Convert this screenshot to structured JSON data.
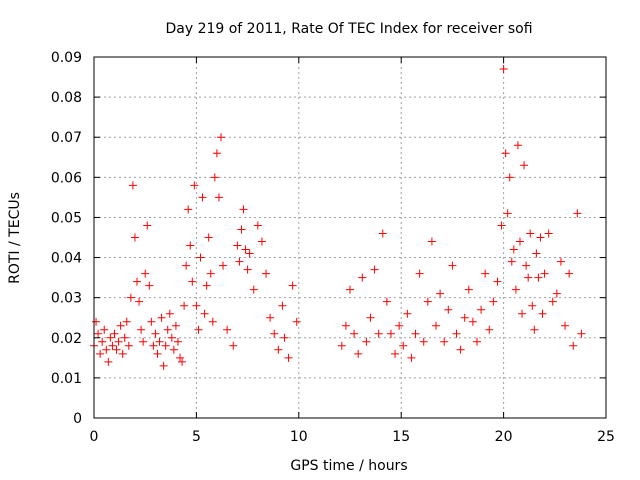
{
  "chart_data": {
    "type": "scatter",
    "title": "Day 219 of 2011, Rate Of TEC Index for receiver sofi",
    "xlabel": "GPS time / hours",
    "ylabel": "ROTI / TECUs",
    "xlim": [
      0,
      25
    ],
    "ylim": [
      0,
      0.09
    ],
    "x_ticks": [
      "0",
      "5",
      "10",
      "15",
      "20",
      "25"
    ],
    "y_ticks": [
      "0",
      "0.01",
      "0.02",
      "0.03",
      "0.04",
      "0.05",
      "0.06",
      "0.07",
      "0.08",
      "0.09"
    ],
    "grid": true,
    "legend": "none",
    "marker": "plus",
    "color": "#ff0000",
    "x": [
      0.0,
      0.1,
      0.2,
      0.3,
      0.4,
      0.5,
      0.6,
      0.7,
      0.8,
      0.9,
      1.0,
      1.1,
      1.2,
      1.3,
      1.4,
      1.5,
      1.6,
      1.7,
      1.8,
      1.9,
      2.0,
      2.1,
      2.2,
      2.3,
      2.4,
      2.5,
      2.6,
      2.7,
      2.8,
      2.9,
      3.0,
      3.1,
      3.2,
      3.3,
      3.4,
      3.5,
      3.6,
      3.7,
      3.8,
      3.9,
      4.0,
      4.1,
      4.2,
      4.3,
      4.4,
      4.5,
      4.6,
      4.7,
      4.8,
      4.9,
      5.0,
      5.1,
      5.2,
      5.3,
      5.4,
      5.5,
      5.6,
      5.7,
      5.8,
      5.9,
      6.0,
      6.1,
      6.2,
      6.3,
      6.5,
      6.8,
      7.0,
      7.1,
      7.2,
      7.3,
      7.4,
      7.5,
      7.6,
      7.8,
      8.0,
      8.2,
      8.4,
      8.6,
      8.8,
      9.0,
      9.2,
      9.3,
      9.5,
      9.7,
      9.9,
      12.1,
      12.3,
      12.5,
      12.7,
      12.9,
      13.1,
      13.3,
      13.5,
      13.7,
      13.9,
      14.1,
      14.3,
      14.5,
      14.7,
      14.9,
      15.1,
      15.3,
      15.5,
      15.7,
      15.9,
      16.1,
      16.3,
      16.5,
      16.7,
      16.9,
      17.1,
      17.3,
      17.5,
      17.7,
      17.9,
      18.1,
      18.3,
      18.5,
      18.7,
      18.9,
      19.1,
      19.3,
      19.5,
      19.7,
      19.9,
      20.0,
      20.1,
      20.2,
      20.3,
      20.4,
      20.5,
      20.6,
      20.7,
      20.8,
      20.9,
      21.0,
      21.1,
      21.2,
      21.3,
      21.4,
      21.5,
      21.6,
      21.7,
      21.8,
      21.9,
      22.0,
      22.2,
      22.4,
      22.6,
      22.8,
      23.0,
      23.2,
      23.4,
      23.6,
      23.8
    ],
    "y": [
      0.018,
      0.024,
      0.021,
      0.016,
      0.019,
      0.022,
      0.017,
      0.014,
      0.02,
      0.018,
      0.021,
      0.017,
      0.019,
      0.023,
      0.016,
      0.02,
      0.024,
      0.018,
      0.03,
      0.058,
      0.045,
      0.034,
      0.029,
      0.022,
      0.019,
      0.036,
      0.048,
      0.033,
      0.024,
      0.018,
      0.021,
      0.016,
      0.019,
      0.025,
      0.013,
      0.018,
      0.022,
      0.026,
      0.02,
      0.017,
      0.023,
      0.019,
      0.015,
      0.014,
      0.028,
      0.038,
      0.052,
      0.043,
      0.034,
      0.058,
      0.028,
      0.022,
      0.04,
      0.055,
      0.026,
      0.033,
      0.045,
      0.036,
      0.024,
      0.06,
      0.066,
      0.055,
      0.07,
      0.038,
      0.022,
      0.018,
      0.043,
      0.039,
      0.047,
      0.052,
      0.042,
      0.037,
      0.041,
      0.032,
      0.048,
      0.044,
      0.036,
      0.025,
      0.021,
      0.017,
      0.028,
      0.02,
      0.015,
      0.033,
      0.024,
      0.018,
      0.023,
      0.032,
      0.021,
      0.016,
      0.035,
      0.019,
      0.025,
      0.037,
      0.021,
      0.046,
      0.029,
      0.021,
      0.016,
      0.023,
      0.018,
      0.026,
      0.015,
      0.021,
      0.036,
      0.019,
      0.029,
      0.044,
      0.023,
      0.031,
      0.019,
      0.027,
      0.038,
      0.021,
      0.017,
      0.025,
      0.032,
      0.024,
      0.019,
      0.027,
      0.036,
      0.022,
      0.029,
      0.034,
      0.048,
      0.087,
      0.066,
      0.051,
      0.06,
      0.039,
      0.042,
      0.032,
      0.068,
      0.044,
      0.026,
      0.063,
      0.038,
      0.035,
      0.046,
      0.028,
      0.022,
      0.041,
      0.035,
      0.045,
      0.026,
      0.036,
      0.046,
      0.029,
      0.031,
      0.039,
      0.023,
      0.036,
      0.018,
      0.051,
      0.021
    ]
  }
}
